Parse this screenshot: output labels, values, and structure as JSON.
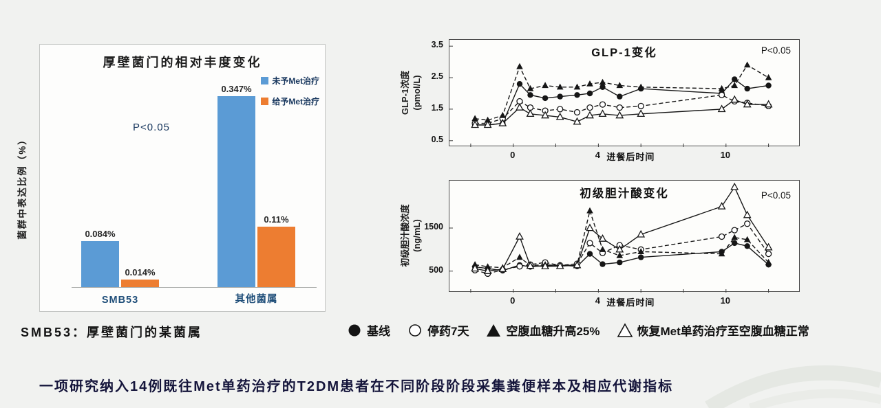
{
  "slide": {
    "footnote": "SMB53：厚壁菌门的某菌属",
    "caption": "一项研究纳入14例既往Met单药治疗的T2DM患者在不同阶段阶段采集粪便样本及相应代谢指标"
  },
  "colors": {
    "untreated_blue": "#5b9bd5",
    "treated_orange": "#ed7d31",
    "line_black": "#161616"
  },
  "chart_data": [
    {
      "id": "firmicutes-bar",
      "type": "bar",
      "title": "厚壁菌门的相对丰度变化",
      "ylabel": "菌群中表达比例（%）",
      "p_value": "P<0.05",
      "categories": [
        "SMB53",
        "其他菌属"
      ],
      "series": [
        {
          "name": "未予Met治疗",
          "color": "#5b9bd5",
          "values": [
            0.084,
            0.347
          ],
          "value_labels": [
            "0.084%",
            "0.347%"
          ]
        },
        {
          "name": "给予Met治疗",
          "color": "#ed7d31",
          "values": [
            0.014,
            0.11
          ],
          "value_labels": [
            "0.014%",
            "0.11%"
          ]
        }
      ],
      "ylim": [
        0,
        0.365
      ],
      "legend_position": "top-right"
    },
    {
      "id": "glp1-line",
      "type": "line",
      "title": "GLP-1变化",
      "p_value": "P<0.05",
      "ylabel_lines": [
        "GLP-1浓度",
        "(pmol/L)"
      ],
      "xlabel": "进餐后时间",
      "yticks": [
        0.5,
        1.5,
        2.5,
        3.5
      ],
      "xticks": [
        0,
        4,
        10
      ],
      "xticks_minor": [
        -2,
        0,
        2,
        4,
        6,
        8,
        10,
        12
      ],
      "xlim": [
        -3,
        13.5
      ],
      "ylim": [
        0.3,
        3.7
      ],
      "x": [
        -1.8,
        -1.2,
        -0.5,
        0.3,
        0.8,
        1.5,
        2.2,
        3.0,
        3.6,
        4.2,
        5.0,
        6.0,
        9.8,
        10.4,
        11.0,
        12.0
      ],
      "series": [
        {
          "name": "基线",
          "marker": "circle-filled",
          "dashed": false,
          "values": [
            1.0,
            1.0,
            1.05,
            2.3,
            1.95,
            1.85,
            1.9,
            1.95,
            2.0,
            2.2,
            1.9,
            2.15,
            2.0,
            2.45,
            2.15,
            2.25
          ]
        },
        {
          "name": "停药7天",
          "marker": "circle-open",
          "dashed": true,
          "values": [
            1.05,
            1.05,
            1.2,
            1.75,
            1.55,
            1.45,
            1.5,
            1.4,
            1.55,
            1.65,
            1.55,
            1.6,
            1.95,
            1.75,
            1.7,
            1.6
          ]
        },
        {
          "name": "空腹血糖升高25%",
          "marker": "triangle-filled",
          "dashed": true,
          "values": [
            1.2,
            1.15,
            1.3,
            2.85,
            2.15,
            2.25,
            2.2,
            2.2,
            2.3,
            2.35,
            2.25,
            2.2,
            2.15,
            2.25,
            2.9,
            2.5
          ]
        },
        {
          "name": "恢复Met单药治疗至空腹血糖正常",
          "marker": "triangle-open",
          "dashed": false,
          "values": [
            1.0,
            1.0,
            1.05,
            1.55,
            1.35,
            1.3,
            1.25,
            1.1,
            1.3,
            1.35,
            1.3,
            1.35,
            1.5,
            1.8,
            1.65,
            1.65
          ]
        }
      ]
    },
    {
      "id": "bile-acid-line",
      "type": "line",
      "title": "初级胆汁酸变化",
      "p_value": "P<0.05",
      "ylabel_lines": [
        "初级胆汁酸浓度",
        "(ng/mL)"
      ],
      "xlabel": "进餐后时间",
      "yticks": [
        500,
        1500
      ],
      "xticks": [
        0,
        4,
        10
      ],
      "xticks_minor": [
        -2,
        0,
        2,
        4,
        6,
        8,
        10,
        12
      ],
      "xlim": [
        -3,
        13.5
      ],
      "ylim": [
        0,
        2600
      ],
      "x": [
        -1.8,
        -1.2,
        -0.5,
        0.3,
        0.8,
        1.5,
        2.2,
        3.0,
        3.6,
        4.2,
        5.0,
        6.0,
        9.8,
        10.4,
        11.0,
        12.0
      ],
      "series": [
        {
          "name": "基线",
          "marker": "circle-filled",
          "dashed": false,
          "values": [
            600,
            560,
            510,
            640,
            600,
            630,
            640,
            610,
            900,
            660,
            700,
            820,
            950,
            1150,
            1080,
            650
          ]
        },
        {
          "name": "停药7天",
          "marker": "circle-open",
          "dashed": true,
          "values": [
            520,
            440,
            530,
            610,
            650,
            700,
            630,
            670,
            1150,
            920,
            1100,
            1000,
            1300,
            1450,
            1600,
            900
          ]
        },
        {
          "name": "空腹血糖升高25%",
          "marker": "triangle-filled",
          "dashed": true,
          "values": [
            650,
            600,
            580,
            820,
            630,
            650,
            620,
            650,
            1900,
            1000,
            860,
            950,
            900,
            1280,
            1230,
            700
          ]
        },
        {
          "name": "恢复Met单药治疗至空腹血糖正常",
          "marker": "triangle-open",
          "dashed": false,
          "values": [
            560,
            500,
            545,
            1300,
            620,
            610,
            615,
            635,
            1500,
            1250,
            1000,
            1350,
            2000,
            2450,
            1800,
            1050
          ]
        }
      ]
    }
  ],
  "legend": {
    "items": [
      {
        "symbol": "circle-filled",
        "label": "基线"
      },
      {
        "symbol": "circle-open",
        "label": "停药7天"
      },
      {
        "symbol": "triangle-filled",
        "label": "空腹血糖升高25%"
      },
      {
        "symbol": "triangle-open",
        "label": "恢复Met单药治疗至空腹血糖正常"
      }
    ]
  }
}
